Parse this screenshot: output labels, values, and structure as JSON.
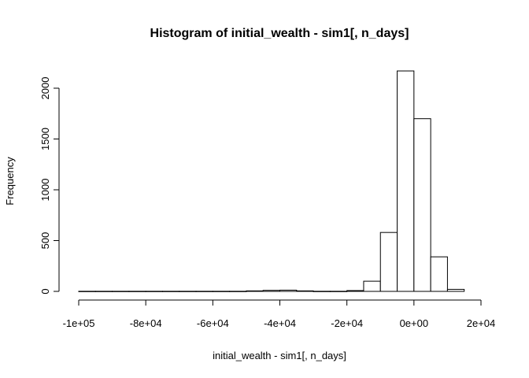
{
  "chart_data": {
    "type": "bar",
    "title": "Histogram of initial_wealth - sim1[, n_days]",
    "xlabel": "initial_wealth - sim1[, n_days]",
    "ylabel": "Frequency",
    "xlim": [
      -100000,
      20000
    ],
    "ylim": [
      0,
      2200
    ],
    "bin_width": 5000,
    "bin_edges": [
      -100000,
      -95000,
      -90000,
      -85000,
      -80000,
      -75000,
      -70000,
      -65000,
      -60000,
      -55000,
      -50000,
      -45000,
      -40000,
      -35000,
      -30000,
      -25000,
      -20000,
      -15000,
      -10000,
      -5000,
      0,
      5000,
      10000,
      15000
    ],
    "values": [
      1,
      1,
      1,
      1,
      1,
      1,
      1,
      1,
      1,
      1,
      5,
      10,
      12,
      5,
      1,
      1,
      8,
      100,
      580,
      2170,
      1700,
      340,
      20
    ],
    "x_ticks": [
      -100000,
      -80000,
      -60000,
      -40000,
      -20000,
      0,
      20000
    ],
    "x_tick_labels": [
      "-1e+05",
      "-8e+04",
      "-6e+04",
      "-4e+04",
      "-2e+04",
      "0e+00",
      "2e+04"
    ],
    "y_ticks": [
      0,
      500,
      1000,
      1500,
      2000
    ],
    "y_tick_labels": [
      "0",
      "500",
      "1000",
      "1500",
      "2000"
    ],
    "bar_color": "#ffffff",
    "bar_border": "#000000",
    "grid": false,
    "legend": "none"
  }
}
